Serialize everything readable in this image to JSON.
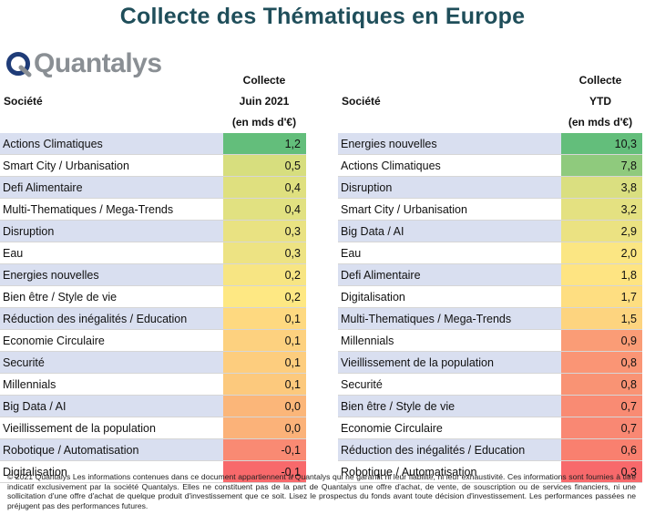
{
  "title": "Collecte des Thématiques en Europe",
  "logo": {
    "text": "Quantalys",
    "color": "#8a8f94",
    "accent": "#1f3c78"
  },
  "left": {
    "societe_header": "Société",
    "col_header": [
      "Collecte",
      "Juin 2021",
      "(en mds d'€)"
    ],
    "rows": [
      {
        "name": "Actions Climatiques",
        "value": "1,2",
        "color": "#63be7b"
      },
      {
        "name": "Smart City / Urbanisation",
        "value": "0,5",
        "color": "#d7de7e"
      },
      {
        "name": "Defi Alimentaire",
        "value": "0,4",
        "color": "#dfe07f"
      },
      {
        "name": "Multi-Thematiques / Mega-Trends",
        "value": "0,4",
        "color": "#e1e181"
      },
      {
        "name": "Disruption",
        "value": "0,3",
        "color": "#e9e282"
      },
      {
        "name": "Eau",
        "value": "0,3",
        "color": "#ede383"
      },
      {
        "name": "Energies nouvelles",
        "value": "0,2",
        "color": "#f7e583"
      },
      {
        "name": "Bien être / Style de vie",
        "value": "0,2",
        "color": "#fee883"
      },
      {
        "name": "Réduction des inégalités / Education",
        "value": "0,1",
        "color": "#fed980"
      },
      {
        "name": "Economie Circulaire",
        "value": "0,1",
        "color": "#fdd17f"
      },
      {
        "name": "Securité",
        "value": "0,1",
        "color": "#fdcd7e"
      },
      {
        "name": "Millennials",
        "value": "0,1",
        "color": "#fcc97d"
      },
      {
        "name": "Big Data / AI",
        "value": "0,0",
        "color": "#fbb679"
      },
      {
        "name": "Vieillissement de la population",
        "value": "0,0",
        "color": "#fbb279"
      },
      {
        "name": "Robotique / Automatisation",
        "value": "-0,1",
        "color": "#f98a73"
      },
      {
        "name": "Digitalisation",
        "value": "-0,1",
        "color": "#f8696b"
      }
    ]
  },
  "right": {
    "societe_header": "Société",
    "col_header": [
      "Collecte",
      "YTD",
      "(en mds d'€)"
    ],
    "rows": [
      {
        "name": "Energies nouvelles",
        "value": "10,3",
        "color": "#63be7b"
      },
      {
        "name": "Actions Climatiques",
        "value": "7,8",
        "color": "#8fca7d"
      },
      {
        "name": "Disruption",
        "value": "3,8",
        "color": "#dadf80"
      },
      {
        "name": "Smart City / Urbanisation",
        "value": "3,2",
        "color": "#e4e181"
      },
      {
        "name": "Big Data / AI",
        "value": "2,9",
        "color": "#ebe282"
      },
      {
        "name": "Eau",
        "value": "2,0",
        "color": "#fbe683"
      },
      {
        "name": "Defi Alimentaire",
        "value": "1,8",
        "color": "#fee482"
      },
      {
        "name": "Digitalisation",
        "value": "1,7",
        "color": "#fede81"
      },
      {
        "name": "Multi-Thematiques / Mega-Trends",
        "value": "1,5",
        "color": "#fdd47f"
      },
      {
        "name": "Millennials",
        "value": "0,9",
        "color": "#fa9c76"
      },
      {
        "name": "Vieillissement de la population",
        "value": "0,8",
        "color": "#fa9575"
      },
      {
        "name": "Securité",
        "value": "0,8",
        "color": "#f99374"
      },
      {
        "name": "Bien être / Style de vie",
        "value": "0,7",
        "color": "#f98b73"
      },
      {
        "name": "Economie Circulaire",
        "value": "0,7",
        "color": "#f98873"
      },
      {
        "name": "Réduction des inégalités / Education",
        "value": "0,6",
        "color": "#f9806f"
      },
      {
        "name": "Robotique / Automatisation",
        "value": "0,3",
        "color": "#f8696b"
      }
    ]
  },
  "footer": "© 2021 Quantalys Les informations contenues dans ce document appartiennent à Quantalys qui ne garantit ni leur fiabilité, ni leur exhaustivité. Ces informations sont fournies à titre indicatif exclusivement par la société Quantalys. Elles ne constituent pas de la part de Quantalys une offre d'achat, de vente, de souscription ou de services financiers, ni une sollicitation d'une offre d'achat de quelque produit d'investissement que ce soit. Lisez le prospectus du fonds avant toute décision d'investissement. Les performances passées ne préjugent pas des performances futures."
}
